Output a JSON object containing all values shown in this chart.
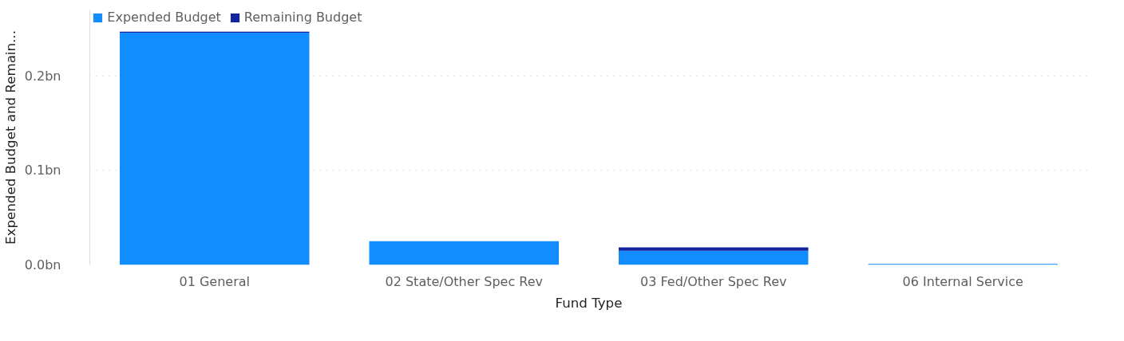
{
  "chart_data": {
    "type": "bar",
    "stacked": true,
    "xlabel": "Fund Type",
    "ylabel": "Expended Budget and Remain...",
    "categories": [
      "01 General",
      "02 State/Other Spec Rev",
      "03 Fed/Other Spec Rev",
      "06 Internal Service"
    ],
    "series": [
      {
        "name": "Expended Budget",
        "color": "#118dff",
        "values": [
          0.246,
          0.025,
          0.015,
          0.001
        ]
      },
      {
        "name": "Remaining Budget",
        "color": "#12239e",
        "values": [
          0.001,
          0.0,
          0.0035,
          0.0
        ]
      }
    ],
    "ylim": [
      0,
      0.27
    ],
    "yticks": [
      {
        "value": 0,
        "label": "0.0bn"
      },
      {
        "value": 0.1,
        "label": "0.1bn"
      },
      {
        "value": 0.2,
        "label": "0.2bn"
      }
    ],
    "grid": "y",
    "legend": "top left"
  }
}
